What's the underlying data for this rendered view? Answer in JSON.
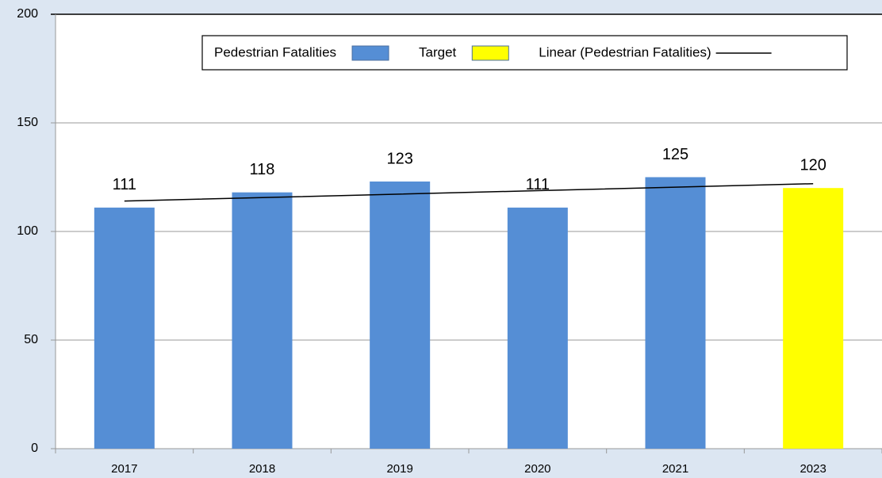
{
  "chart_data": {
    "type": "bar",
    "stacked": true,
    "categories": [
      "2017",
      "2018",
      "2019",
      "2020",
      "2021",
      "2023"
    ],
    "series": [
      {
        "name": "Pedestrian Fatalities",
        "color": "#558ed5",
        "values": [
          111,
          118,
          123,
          111,
          125,
          null
        ]
      },
      {
        "name": "Target",
        "color": "#ffff00",
        "values": [
          null,
          null,
          null,
          null,
          null,
          120
        ]
      },
      {
        "name": "Linear (Pedestrian Fatalities)",
        "type": "line",
        "color": "#000000",
        "values": [
          114,
          115.6,
          117.2,
          118.8,
          120.4,
          122
        ]
      }
    ],
    "ylim": [
      0,
      200
    ],
    "yticks": [
      0,
      50,
      100,
      150,
      200
    ],
    "grid": true,
    "data_labels": true,
    "legend": "top-right"
  }
}
